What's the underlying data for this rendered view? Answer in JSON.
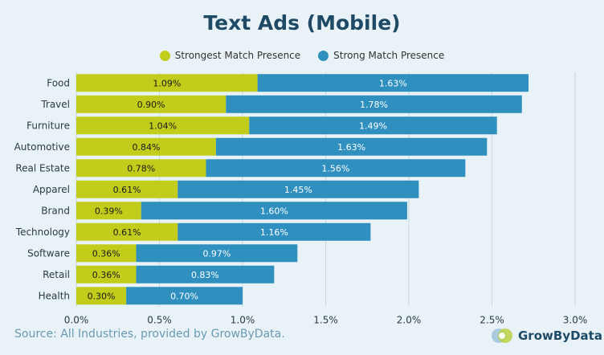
{
  "colors": {
    "strongest": "#c2cc1a",
    "strong": "#2f90bf",
    "grid": "#c7d6df",
    "axis_text": "#2a3a45",
    "bar_text_dark": "#1a1a1a",
    "bar_text_light": "#ffffff"
  },
  "brand": {
    "name": "GrowByData",
    "logo_icon": "growbydata-logo-icon"
  },
  "footer": {
    "source": "Source: All Industries, provided by GrowByData."
  },
  "chart_data": {
    "type": "bar",
    "orientation": "horizontal",
    "stacked": true,
    "title": "Text Ads (Mobile)",
    "categories": [
      "Food",
      "Travel",
      "Furniture",
      "Automotive",
      "Real Estate",
      "Apparel",
      "Brand",
      "Technology",
      "Software",
      "Retail",
      "Health"
    ],
    "series": [
      {
        "name": "Strongest Match Presence",
        "values": [
          1.09,
          0.9,
          1.04,
          0.84,
          0.78,
          0.61,
          0.39,
          0.61,
          0.36,
          0.36,
          0.3
        ],
        "labels": [
          "1.09%",
          "0.90%",
          "1.04%",
          "0.84%",
          "0.78%",
          "0.61%",
          "0.39%",
          "0.61%",
          "0.36%",
          "0.36%",
          "0.30%"
        ]
      },
      {
        "name": "Strong Match Presence",
        "values": [
          1.63,
          1.78,
          1.49,
          1.63,
          1.56,
          1.45,
          1.6,
          1.16,
          0.97,
          0.83,
          0.7
        ],
        "labels": [
          "1.63%",
          "1.78%",
          "1.49%",
          "1.63%",
          "1.56%",
          "1.45%",
          "1.60%",
          "1.16%",
          "0.97%",
          "0.83%",
          "0.70%"
        ]
      }
    ],
    "xlim": [
      0,
      3.0
    ],
    "xticks": [
      0,
      0.5,
      1.0,
      1.5,
      2.0,
      2.5,
      3.0
    ],
    "xtick_labels": [
      "0.0%",
      "0.5%",
      "1.0%",
      "1.5%",
      "2.0%",
      "2.5%",
      "3.0%"
    ],
    "grid": "vertical",
    "legend": "top-center"
  }
}
